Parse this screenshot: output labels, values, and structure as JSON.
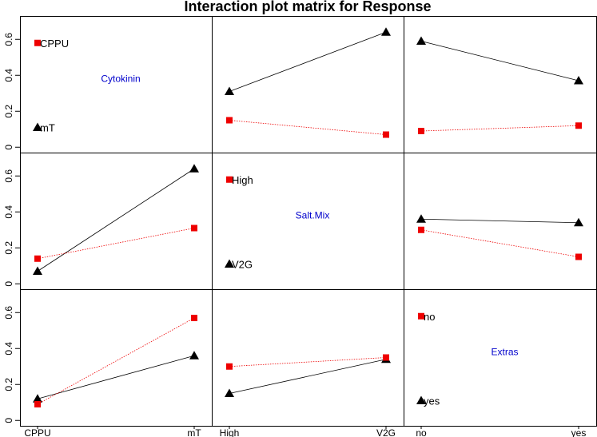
{
  "chart_data": {
    "type": "line",
    "title": "Interaction plot matrix for Response",
    "yticks": [
      "0",
      "0.2",
      "0.4",
      "0.6"
    ],
    "ylim": [
      -0.03,
      0.73
    ],
    "colors": {
      "series_a": "#000000",
      "series_b": "#ee0000",
      "diagonal_label": "#0000cc"
    },
    "diagonal": [
      {
        "factor": "Cytokinin",
        "levels": [
          "CPPU",
          "mT"
        ],
        "level_y": [
          0.58,
          0.11
        ],
        "level_markers": [
          "square",
          "triangle"
        ]
      },
      {
        "factor": "Salt.Mix",
        "levels": [
          "High",
          "V2G"
        ],
        "level_y": [
          0.58,
          0.11
        ],
        "level_markers": [
          "square",
          "triangle"
        ]
      },
      {
        "factor": "Extras",
        "levels": [
          "no",
          "yes"
        ],
        "level_y": [
          0.58,
          0.11
        ],
        "level_markers": [
          "square",
          "triangle"
        ]
      }
    ],
    "x_tick_labels": [
      [
        "CPPU",
        "mT"
      ],
      [
        "High",
        "V2G"
      ],
      [
        "no",
        "yes"
      ]
    ],
    "panels": [
      {
        "row": 0,
        "col": 1,
        "series": [
          {
            "marker": "triangle",
            "color": "#000000",
            "values": [
              0.31,
              0.64
            ]
          },
          {
            "marker": "square",
            "color": "#ee0000",
            "values": [
              0.15,
              0.07
            ]
          }
        ]
      },
      {
        "row": 0,
        "col": 2,
        "series": [
          {
            "marker": "triangle",
            "color": "#000000",
            "values": [
              0.59,
              0.37
            ]
          },
          {
            "marker": "square",
            "color": "#ee0000",
            "values": [
              0.09,
              0.12
            ]
          }
        ]
      },
      {
        "row": 1,
        "col": 0,
        "series": [
          {
            "marker": "triangle",
            "color": "#000000",
            "values": [
              0.07,
              0.64
            ]
          },
          {
            "marker": "square",
            "color": "#ee0000",
            "values": [
              0.14,
              0.31
            ]
          }
        ]
      },
      {
        "row": 1,
        "col": 2,
        "series": [
          {
            "marker": "triangle",
            "color": "#000000",
            "values": [
              0.36,
              0.34
            ]
          },
          {
            "marker": "square",
            "color": "#ee0000",
            "values": [
              0.3,
              0.15
            ]
          }
        ]
      },
      {
        "row": 2,
        "col": 0,
        "series": [
          {
            "marker": "triangle",
            "color": "#000000",
            "values": [
              0.12,
              0.36
            ]
          },
          {
            "marker": "square",
            "color": "#ee0000",
            "values": [
              0.09,
              0.57
            ]
          }
        ]
      },
      {
        "row": 2,
        "col": 1,
        "series": [
          {
            "marker": "triangle",
            "color": "#000000",
            "values": [
              0.15,
              0.34
            ]
          },
          {
            "marker": "square",
            "color": "#ee0000",
            "values": [
              0.3,
              0.35
            ]
          }
        ]
      }
    ]
  }
}
